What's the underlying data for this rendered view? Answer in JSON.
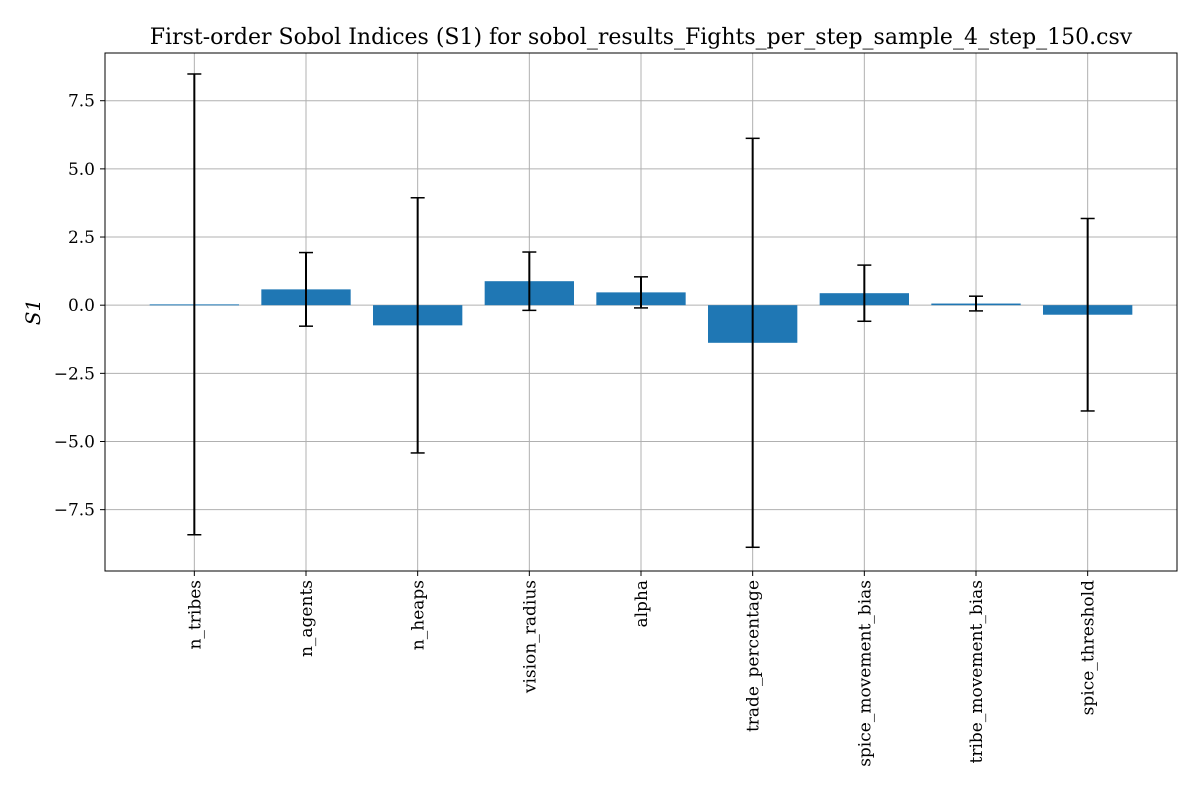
{
  "chart_data": {
    "type": "bar",
    "title": "First-order Sobol Indices (S1) for sobol_results_Fights_per_step_sample_4_step_150.csv",
    "ylabel": "S1",
    "xlabel": "",
    "categories": [
      "n_tribes",
      "n_agents",
      "n_heaps",
      "vision_radius",
      "alpha",
      "trade_percentage",
      "spice_movement_bias",
      "tribe_movement_bias",
      "spice_threshold"
    ],
    "values": [
      0.03,
      0.58,
      -0.74,
      0.88,
      0.47,
      -1.38,
      0.44,
      0.06,
      -0.35
    ],
    "errors": [
      8.45,
      1.35,
      4.68,
      1.07,
      0.57,
      7.5,
      1.03,
      0.27,
      3.53
    ],
    "ylim": [
      -9.75,
      9.25
    ],
    "yticks": [
      -7.5,
      -5.0,
      -2.5,
      0.0,
      2.5,
      5.0,
      7.5
    ],
    "ytick_labels": [
      "−7.5",
      "−5.0",
      "−2.5",
      "0.0",
      "2.5",
      "5.0",
      "7.5"
    ],
    "bar_color": "#1f77b4",
    "error_color": "#000000",
    "grid": true,
    "legend": "none"
  }
}
